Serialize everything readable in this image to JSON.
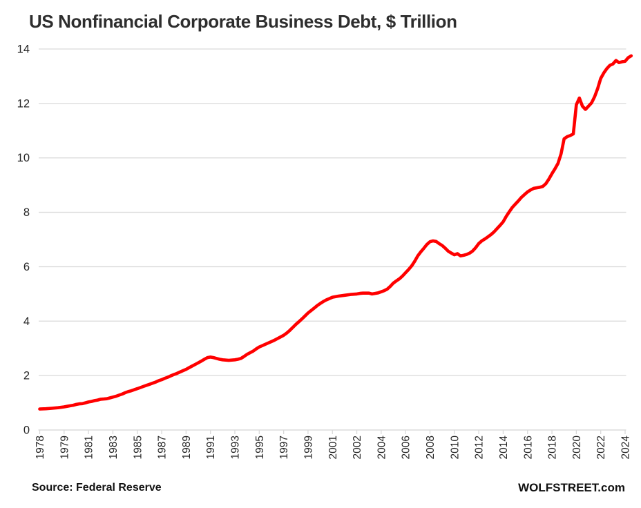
{
  "title": "US Nonfinancial Corporate Business Debt, $ Trillion",
  "footer": {
    "source": "Source: Federal Reserve",
    "branding": "WOLFSTREET.com"
  },
  "colors": {
    "line": "#ff0000",
    "gridline": "#d9d9d9",
    "axis_line": "#d9d9d9",
    "axis_text": "#262626",
    "title_text": "#2e2e2e",
    "footer_text": "#111111",
    "background": "#ffffff"
  },
  "chart_data": {
    "type": "line",
    "title": "US Nonfinancial Corporate Business Debt, $ Trillion",
    "ylabel": "",
    "xlabel": "",
    "unit": "$ Trillion",
    "frequency": "quarterly",
    "start_year": 1978,
    "period_years": 0.25,
    "values": [
      0.77,
      0.78,
      0.8,
      0.82,
      0.85,
      0.87,
      0.89,
      0.91,
      0.94,
      0.96,
      0.97,
      1.0,
      1.03,
      1.05,
      1.08,
      1.1,
      1.13,
      1.14,
      1.15,
      1.18,
      1.21,
      1.24,
      1.28,
      1.32,
      1.37,
      1.41,
      1.44,
      1.48,
      1.52,
      1.56,
      1.6,
      1.64,
      1.68,
      1.72,
      1.76,
      1.81,
      1.85,
      1.9,
      1.94,
      1.99,
      2.04,
      2.08,
      2.13,
      2.18,
      2.23,
      2.29,
      2.35,
      2.41,
      2.47,
      2.53,
      2.6,
      2.66,
      2.68,
      2.66,
      2.63,
      2.6,
      2.58,
      2.57,
      2.56,
      2.57,
      2.58,
      2.6,
      2.63,
      2.7,
      2.78,
      2.84,
      2.9,
      2.98,
      3.05,
      3.1,
      3.15,
      3.2,
      3.25,
      3.3,
      3.36,
      3.42,
      3.48,
      3.56,
      3.66,
      3.77,
      3.88,
      3.98,
      4.08,
      4.19,
      4.3,
      4.39,
      4.48,
      4.57,
      4.65,
      4.72,
      4.78,
      4.83,
      4.88,
      4.92,
      4.95,
      4.98,
      5.0,
      5.02,
      5.03,
      5.03,
      5.03,
      5.0,
      5.02,
      5.04,
      5.08,
      5.12,
      5.18,
      5.28,
      5.4,
      5.48,
      5.56,
      5.66,
      5.78,
      5.9,
      6.03,
      6.2,
      6.4,
      6.55,
      6.68,
      6.82,
      6.92,
      6.95,
      6.93,
      6.85,
      6.78,
      6.68,
      6.57,
      6.5,
      6.44,
      6.48,
      6.4,
      6.42,
      6.45,
      6.5,
      6.58,
      6.7,
      6.85,
      6.95,
      7.02,
      7.1,
      7.18,
      7.28,
      7.4,
      7.52,
      7.65,
      7.85,
      8.02,
      8.18,
      8.3,
      8.42,
      8.55,
      8.65,
      8.75,
      8.82,
      8.88,
      8.9,
      8.92,
      8.95,
      9.05,
      9.22,
      9.42,
      9.6,
      9.8,
      10.15,
      10.7,
      10.78,
      10.82,
      10.88,
      11.95,
      12.2,
      11.9,
      11.78,
      11.9,
      12.02,
      12.25,
      12.55,
      12.92,
      13.12,
      13.28,
      13.4,
      13.45,
      13.58,
      13.5,
      13.53,
      13.55,
      13.68,
      13.75
    ],
    "x_tick_labels": [
      "1978",
      "1979",
      "1981",
      "1983",
      "1985",
      "1987",
      "1989",
      "1991",
      "1993",
      "1995",
      "1997",
      "1999",
      "2001",
      "2002",
      "2004",
      "2006",
      "2008",
      "2010",
      "2012",
      "2014",
      "2016",
      "2018",
      "2020",
      "2022",
      "2024"
    ],
    "y_ticks": [
      0,
      2,
      4,
      6,
      8,
      10,
      12,
      14
    ],
    "ylim": [
      0,
      14
    ],
    "grid": "horizontal",
    "legend": "none"
  }
}
